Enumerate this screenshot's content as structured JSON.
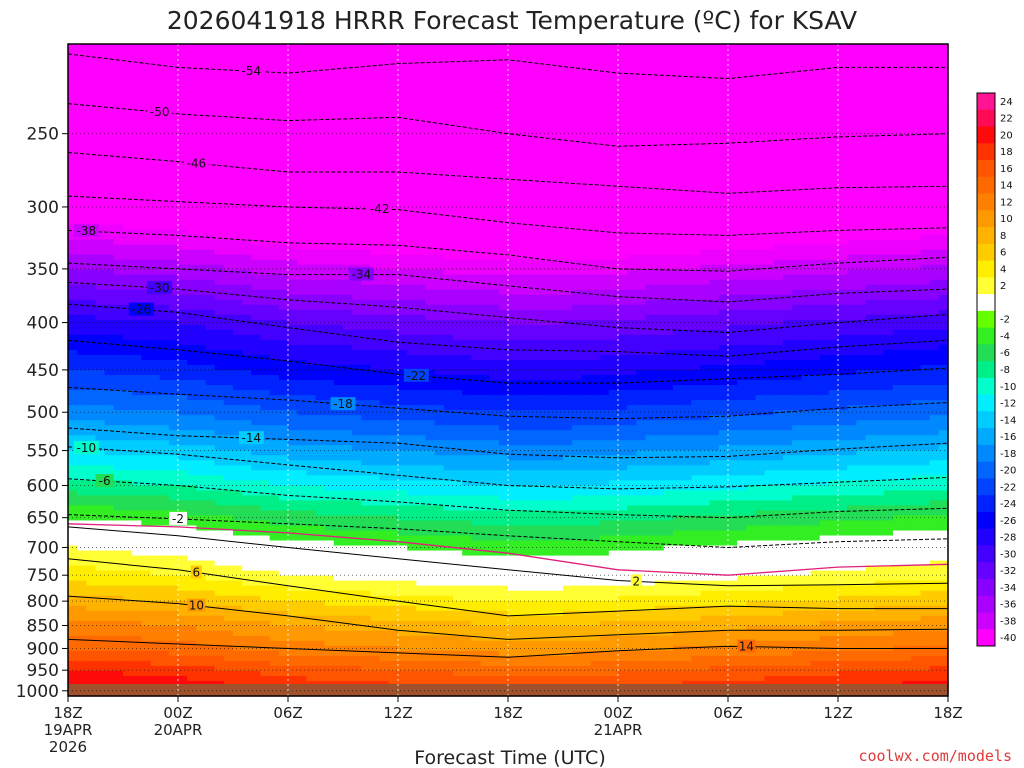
{
  "title": "2026041918 HRRR Forecast Temperature (ºC) for KSAV",
  "xlabel": "Forecast Time (UTC)",
  "credit": "coolwx.com/models",
  "colors": {
    "credit": "#e03a3a",
    "ground": "#a0522d",
    "freezing": "#e0207a"
  },
  "chart_data": {
    "type": "heatmap",
    "title": "2026041918 HRRR Forecast Temperature (ºC) for KSAV",
    "xlabel": "Forecast Time (UTC)",
    "ylabel": "",
    "x_ticks": [
      {
        "h": 0,
        "lines": [
          "18Z",
          "19APR",
          "2026"
        ]
      },
      {
        "h": 6,
        "lines": [
          "00Z",
          "20APR"
        ]
      },
      {
        "h": 12,
        "lines": [
          "06Z"
        ]
      },
      {
        "h": 18,
        "lines": [
          "12Z"
        ]
      },
      {
        "h": 24,
        "lines": [
          "18Z"
        ]
      },
      {
        "h": 30,
        "lines": [
          "00Z",
          "21APR"
        ]
      },
      {
        "h": 36,
        "lines": [
          "06Z"
        ]
      },
      {
        "h": 42,
        "lines": [
          "12Z"
        ]
      },
      {
        "h": 48,
        "lines": [
          "18Z"
        ]
      }
    ],
    "xlim": [
      0,
      48
    ],
    "y_scale": "log-pressure",
    "y_ticks": [
      250,
      300,
      350,
      400,
      450,
      500,
      550,
      600,
      650,
      700,
      750,
      800,
      850,
      900,
      950,
      1000
    ],
    "ylim": [
      200,
      1013
    ],
    "colorbar_labels": [
      24,
      22,
      20,
      18,
      16,
      14,
      12,
      10,
      8,
      6,
      4,
      2,
      -2,
      -4,
      -6,
      -8,
      -10,
      -12,
      -14,
      -16,
      -18,
      -20,
      -22,
      -24,
      -26,
      -28,
      -30,
      -32,
      -34,
      -36,
      -38,
      -40
    ],
    "reference_times": [
      0,
      6,
      12,
      18,
      24,
      30,
      36,
      42,
      48
    ],
    "temperature_profile": [
      {
        "p": 200,
        "t": -57
      },
      {
        "p": 250,
        "t": -51
      },
      {
        "p": 300,
        "t": -43
      },
      {
        "p": 350,
        "t": -35
      },
      {
        "p": 400,
        "t": -28
      },
      {
        "p": 450,
        "t": -23
      },
      {
        "p": 500,
        "t": -18
      },
      {
        "p": 550,
        "t": -13
      },
      {
        "p": 600,
        "t": -8
      },
      {
        "p": 650,
        "t": -3
      },
      {
        "p": 700,
        "t": 1
      },
      {
        "p": 750,
        "t": 4
      },
      {
        "p": 800,
        "t": 8
      },
      {
        "p": 850,
        "t": 12
      },
      {
        "p": 900,
        "t": 15
      },
      {
        "p": 950,
        "t": 19
      },
      {
        "p": 1000,
        "t": 22
      },
      {
        "p": 1013,
        "t": 22
      }
    ],
    "time_anomaly": [
      {
        "h": 0,
        "dt": 1
      },
      {
        "h": 3,
        "dt": 0.5
      },
      {
        "h": 6,
        "dt": 0
      },
      {
        "h": 9,
        "dt": -1
      },
      {
        "h": 12,
        "dt": -2
      },
      {
        "h": 15,
        "dt": -2.5
      },
      {
        "h": 18,
        "dt": -3
      },
      {
        "h": 21,
        "dt": -3.5
      },
      {
        "h": 24,
        "dt": -4
      },
      {
        "h": 27,
        "dt": -4
      },
      {
        "h": 30,
        "dt": -3.5
      },
      {
        "h": 33,
        "dt": -3
      },
      {
        "h": 36,
        "dt": -2.5
      },
      {
        "h": 39,
        "dt": -2
      },
      {
        "h": 42,
        "dt": -1.5
      },
      {
        "h": 45,
        "dt": -1
      },
      {
        "h": 48,
        "dt": -0.5
      }
    ],
    "contours": [
      {
        "value": -54,
        "style": "dashed",
        "label_h": 10,
        "points": [
          [
            0,
            205
          ],
          [
            6,
            212
          ],
          [
            12,
            215
          ],
          [
            18,
            210
          ],
          [
            24,
            208
          ],
          [
            30,
            215
          ],
          [
            36,
            218
          ],
          [
            42,
            212
          ],
          [
            48,
            212
          ]
        ]
      },
      {
        "value": -50,
        "style": "dashed",
        "label_h": 5,
        "points": [
          [
            0,
            232
          ],
          [
            6,
            238
          ],
          [
            12,
            242
          ],
          [
            18,
            240
          ],
          [
            24,
            250
          ],
          [
            30,
            258
          ],
          [
            36,
            256
          ],
          [
            42,
            252
          ],
          [
            48,
            250
          ]
        ]
      },
      {
        "value": -46,
        "style": "dashed",
        "label_h": 7,
        "points": [
          [
            0,
            262
          ],
          [
            6,
            268
          ],
          [
            12,
            275
          ],
          [
            18,
            275
          ],
          [
            24,
            280
          ],
          [
            30,
            285
          ],
          [
            36,
            290
          ],
          [
            42,
            286
          ],
          [
            48,
            285
          ]
        ]
      },
      {
        "value": -42,
        "style": "dashed",
        "label_h": 17,
        "points": [
          [
            0,
            292
          ],
          [
            6,
            296
          ],
          [
            12,
            300
          ],
          [
            18,
            302
          ],
          [
            24,
            312
          ],
          [
            30,
            320
          ],
          [
            36,
            322
          ],
          [
            42,
            318
          ],
          [
            48,
            316
          ]
        ]
      },
      {
        "value": -38,
        "style": "dashed",
        "label_h": 1,
        "points": [
          [
            0,
            318
          ],
          [
            6,
            322
          ],
          [
            12,
            328
          ],
          [
            18,
            330
          ],
          [
            24,
            338
          ],
          [
            30,
            350
          ],
          [
            36,
            352
          ],
          [
            42,
            345
          ],
          [
            48,
            340
          ]
        ]
      },
      {
        "value": -34,
        "style": "dashed",
        "label_h": 16,
        "points": [
          [
            0,
            345
          ],
          [
            6,
            350
          ],
          [
            12,
            355
          ],
          [
            18,
            355
          ],
          [
            24,
            365
          ],
          [
            30,
            375
          ],
          [
            36,
            380
          ],
          [
            42,
            372
          ],
          [
            48,
            368
          ]
        ]
      },
      {
        "value": -30,
        "style": "dashed",
        "label_h": 5,
        "points": [
          [
            0,
            362
          ],
          [
            6,
            368
          ],
          [
            12,
            378
          ],
          [
            18,
            385
          ],
          [
            24,
            395
          ],
          [
            30,
            405
          ],
          [
            36,
            410
          ],
          [
            42,
            400
          ],
          [
            48,
            392
          ]
        ]
      },
      {
        "value": -26,
        "style": "dashed",
        "label_h": 4,
        "points": [
          [
            0,
            382
          ],
          [
            6,
            390
          ],
          [
            12,
            405
          ],
          [
            18,
            420
          ],
          [
            24,
            428
          ],
          [
            30,
            430
          ],
          [
            36,
            435
          ],
          [
            42,
            425
          ],
          [
            48,
            418
          ]
        ]
      },
      {
        "value": -22,
        "style": "dashed",
        "label_h": 19,
        "points": [
          [
            0,
            418
          ],
          [
            6,
            428
          ],
          [
            12,
            440
          ],
          [
            18,
            455
          ],
          [
            24,
            465
          ],
          [
            30,
            465
          ],
          [
            36,
            460
          ],
          [
            42,
            455
          ],
          [
            48,
            448
          ]
        ]
      },
      {
        "value": -18,
        "style": "dashed",
        "label_h": 15,
        "points": [
          [
            0,
            470
          ],
          [
            6,
            478
          ],
          [
            12,
            485
          ],
          [
            18,
            495
          ],
          [
            24,
            505
          ],
          [
            30,
            508
          ],
          [
            36,
            505
          ],
          [
            42,
            495
          ],
          [
            48,
            488
          ]
        ]
      },
      {
        "value": -14,
        "style": "dashed",
        "label_h": 10,
        "points": [
          [
            0,
            520
          ],
          [
            6,
            530
          ],
          [
            12,
            535
          ],
          [
            18,
            540
          ],
          [
            24,
            555
          ],
          [
            30,
            560
          ],
          [
            36,
            558
          ],
          [
            42,
            548
          ],
          [
            48,
            540
          ]
        ]
      },
      {
        "value": -10,
        "style": "dashed",
        "label_h": 1,
        "points": [
          [
            0,
            545
          ],
          [
            6,
            555
          ],
          [
            12,
            570
          ],
          [
            18,
            585
          ],
          [
            24,
            600
          ],
          [
            30,
            605
          ],
          [
            36,
            602
          ],
          [
            42,
            595
          ],
          [
            48,
            588
          ]
        ]
      },
      {
        "value": -6,
        "style": "dashed",
        "label_h": 2,
        "points": [
          [
            0,
            590
          ],
          [
            6,
            600
          ],
          [
            12,
            615
          ],
          [
            18,
            625
          ],
          [
            24,
            638
          ],
          [
            30,
            645
          ],
          [
            36,
            650
          ],
          [
            42,
            640
          ],
          [
            48,
            635
          ]
        ]
      },
      {
        "value": -2,
        "style": "dashed",
        "label_h": 6,
        "points": [
          [
            0,
            645
          ],
          [
            6,
            652
          ],
          [
            12,
            660
          ],
          [
            18,
            668
          ],
          [
            24,
            680
          ],
          [
            30,
            690
          ],
          [
            36,
            700
          ],
          [
            42,
            690
          ],
          [
            48,
            685
          ]
        ]
      },
      {
        "value": 2,
        "style": "solid",
        "label_h": 31,
        "points": [
          [
            0,
            665
          ],
          [
            6,
            680
          ],
          [
            12,
            700
          ],
          [
            18,
            720
          ],
          [
            24,
            740
          ],
          [
            30,
            760
          ],
          [
            36,
            770
          ],
          [
            42,
            768
          ],
          [
            48,
            765
          ]
        ]
      },
      {
        "value": 6,
        "style": "solid",
        "label_h": 7,
        "points": [
          [
            0,
            720
          ],
          [
            6,
            740
          ],
          [
            12,
            770
          ],
          [
            18,
            800
          ],
          [
            24,
            830
          ],
          [
            30,
            820
          ],
          [
            36,
            810
          ],
          [
            42,
            815
          ],
          [
            48,
            815
          ]
        ]
      },
      {
        "value": 10,
        "style": "solid",
        "label_h": 7,
        "points": [
          [
            0,
            790
          ],
          [
            6,
            805
          ],
          [
            12,
            830
          ],
          [
            18,
            860
          ],
          [
            24,
            880
          ],
          [
            30,
            870
          ],
          [
            36,
            860
          ],
          [
            42,
            860
          ],
          [
            48,
            858
          ]
        ]
      },
      {
        "value": 14,
        "style": "solid",
        "label_h": 37,
        "points": [
          [
            0,
            880
          ],
          [
            6,
            890
          ],
          [
            12,
            900
          ],
          [
            18,
            910
          ],
          [
            24,
            920
          ],
          [
            30,
            905
          ],
          [
            36,
            895
          ],
          [
            42,
            900
          ],
          [
            48,
            900
          ]
        ]
      }
    ],
    "freezing_level": {
      "value": 0,
      "points": [
        [
          0,
          660
        ],
        [
          6,
          665
        ],
        [
          12,
          675
        ],
        [
          18,
          690
        ],
        [
          24,
          710
        ],
        [
          30,
          740
        ],
        [
          36,
          750
        ],
        [
          42,
          735
        ],
        [
          48,
          730
        ]
      ]
    }
  }
}
